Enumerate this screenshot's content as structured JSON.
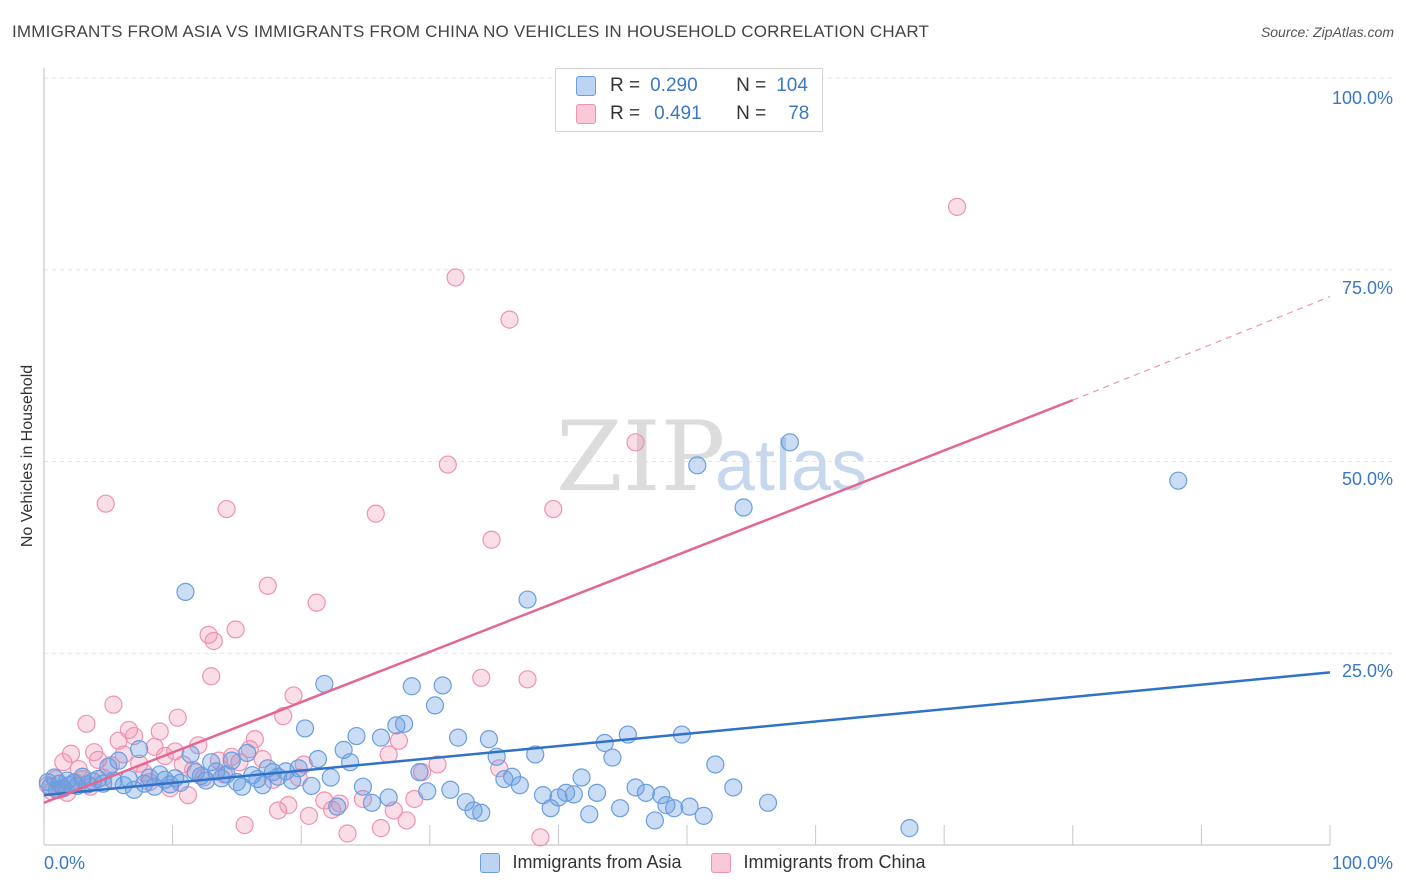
{
  "title": "IMMIGRANTS FROM ASIA VS IMMIGRANTS FROM CHINA NO VEHICLES IN HOUSEHOLD CORRELATION CHART",
  "source": "Source: ZipAtlas.com",
  "watermark": {
    "zip": "ZIP",
    "atlas": "atlas"
  },
  "legend": {
    "rows": [
      {
        "r_label": "R =",
        "r_value": "0.290",
        "n_label": "N =",
        "n_value": "104"
      },
      {
        "r_label": "R =",
        "r_value": "0.491",
        "n_label": "N =",
        "n_value": "78"
      }
    ]
  },
  "chart_data": {
    "type": "scatter",
    "title": "IMMIGRANTS FROM ASIA VS IMMIGRANTS FROM CHINA NO VEHICLES IN HOUSEHOLD CORRELATION CHART",
    "xlabel": "",
    "ylabel": "No Vehicles in Household",
    "xlim": [
      0,
      100
    ],
    "ylim": [
      0,
      100
    ],
    "x_tick_labels": [
      "0.0%",
      "100.0%"
    ],
    "y_tick_labels": [
      "25.0%",
      "50.0%",
      "75.0%",
      "100.0%"
    ],
    "y_ticks": [
      25,
      50,
      75,
      100
    ],
    "grid": true,
    "colors": {
      "asia": "#6a9ee0",
      "china": "#ef93b0",
      "asia_line": "#2f72c8",
      "china_line": "#e26892",
      "tick_label": "#3a78c4"
    },
    "series": [
      {
        "name": "Immigrants from Asia",
        "r": 0.29,
        "n": 104,
        "trend": {
          "x0": 0,
          "y0": 6.5,
          "x1": 100,
          "y1": 22.5
        },
        "points": [
          [
            0.3,
            8.2
          ],
          [
            0.5,
            7.6
          ],
          [
            0.8,
            8.8
          ],
          [
            1.0,
            7.2
          ],
          [
            1.2,
            8.0
          ],
          [
            1.5,
            7.4
          ],
          [
            1.8,
            8.4
          ],
          [
            2.0,
            7.8
          ],
          [
            2.3,
            8.1
          ],
          [
            2.6,
            7.7
          ],
          [
            3.0,
            8.9
          ],
          [
            3.4,
            7.9
          ],
          [
            3.8,
            8.3
          ],
          [
            4.2,
            8.6
          ],
          [
            4.6,
            8.0
          ],
          [
            5.0,
            10.2
          ],
          [
            5.4,
            8.4
          ],
          [
            5.8,
            11.0
          ],
          [
            6.2,
            7.8
          ],
          [
            6.6,
            8.6
          ],
          [
            7.0,
            7.2
          ],
          [
            7.4,
            12.5
          ],
          [
            7.8,
            8.0
          ],
          [
            8.2,
            8.8
          ],
          [
            8.6,
            7.6
          ],
          [
            9.0,
            9.2
          ],
          [
            9.4,
            8.5
          ],
          [
            9.8,
            7.9
          ],
          [
            10.2,
            8.7
          ],
          [
            10.6,
            8.1
          ],
          [
            11.0,
            33.0
          ],
          [
            11.4,
            11.8
          ],
          [
            11.8,
            9.5
          ],
          [
            12.2,
            9.0
          ],
          [
            12.6,
            8.4
          ],
          [
            13.0,
            10.8
          ],
          [
            13.4,
            9.6
          ],
          [
            13.8,
            8.7
          ],
          [
            14.2,
            9.2
          ],
          [
            14.6,
            11.0
          ],
          [
            15.0,
            8.2
          ],
          [
            15.4,
            7.6
          ],
          [
            15.8,
            12.0
          ],
          [
            16.2,
            9.1
          ],
          [
            16.6,
            8.6
          ],
          [
            17.0,
            7.8
          ],
          [
            17.4,
            10.0
          ],
          [
            17.8,
            9.5
          ],
          [
            18.2,
            8.9
          ],
          [
            18.8,
            9.6
          ],
          [
            19.3,
            8.4
          ],
          [
            19.8,
            10.0
          ],
          [
            20.3,
            15.2
          ],
          [
            20.8,
            7.7
          ],
          [
            21.3,
            11.2
          ],
          [
            21.8,
            21.0
          ],
          [
            22.3,
            8.8
          ],
          [
            22.8,
            5.0
          ],
          [
            23.3,
            12.4
          ],
          [
            23.8,
            10.8
          ],
          [
            24.3,
            14.2
          ],
          [
            24.8,
            7.6
          ],
          [
            25.5,
            5.5
          ],
          [
            26.2,
            14.0
          ],
          [
            26.8,
            6.2
          ],
          [
            27.4,
            15.6
          ],
          [
            28.0,
            15.8
          ],
          [
            28.6,
            20.7
          ],
          [
            29.2,
            9.5
          ],
          [
            29.8,
            7.0
          ],
          [
            30.4,
            18.2
          ],
          [
            31.0,
            20.8
          ],
          [
            31.6,
            7.2
          ],
          [
            32.2,
            14.0
          ],
          [
            32.8,
            5.6
          ],
          [
            33.4,
            4.5
          ],
          [
            34.0,
            4.2
          ],
          [
            34.6,
            13.8
          ],
          [
            35.2,
            11.5
          ],
          [
            35.8,
            8.6
          ],
          [
            36.4,
            8.9
          ],
          [
            37.0,
            7.8
          ],
          [
            37.6,
            32.0
          ],
          [
            38.2,
            11.8
          ],
          [
            38.8,
            6.5
          ],
          [
            39.4,
            4.8
          ],
          [
            40.0,
            6.2
          ],
          [
            40.6,
            6.8
          ],
          [
            41.2,
            6.6
          ],
          [
            41.8,
            8.8
          ],
          [
            42.4,
            4.0
          ],
          [
            43.0,
            6.8
          ],
          [
            43.6,
            13.3
          ],
          [
            44.2,
            11.4
          ],
          [
            44.8,
            4.8
          ],
          [
            45.4,
            14.4
          ],
          [
            46.0,
            7.5
          ],
          [
            46.8,
            6.8
          ],
          [
            47.5,
            3.2
          ],
          [
            48.0,
            6.5
          ],
          [
            48.4,
            5.2
          ],
          [
            49.0,
            4.8
          ],
          [
            49.6,
            14.4
          ],
          [
            50.2,
            5.0
          ],
          [
            50.8,
            49.5
          ],
          [
            51.3,
            3.8
          ],
          [
            52.2,
            10.5
          ],
          [
            53.6,
            7.5
          ],
          [
            54.4,
            44.0
          ],
          [
            56.3,
            5.5
          ],
          [
            58.0,
            52.5
          ],
          [
            67.3,
            2.2
          ],
          [
            88.2,
            47.5
          ]
        ]
      },
      {
        "name": "Immigrants from China",
        "r": 0.491,
        "n": 78,
        "trend": {
          "x0": 0,
          "y0": 5.5,
          "x1": 80,
          "y1": 58.0,
          "dash_x1": 100,
          "dash_y1": 71.5
        },
        "points": [
          [
            0.3,
            7.8
          ],
          [
            0.6,
            7.0
          ],
          [
            0.9,
            8.6
          ],
          [
            1.2,
            7.2
          ],
          [
            1.5,
            10.8
          ],
          [
            1.8,
            6.8
          ],
          [
            2.1,
            11.9
          ],
          [
            2.4,
            8.2
          ],
          [
            2.7,
            9.9
          ],
          [
            3.0,
            8.6
          ],
          [
            3.3,
            15.8
          ],
          [
            3.6,
            7.6
          ],
          [
            3.9,
            12.1
          ],
          [
            4.2,
            11.1
          ],
          [
            4.6,
            8.8
          ],
          [
            4.8,
            44.5
          ],
          [
            5.2,
            10.4
          ],
          [
            5.4,
            18.3
          ],
          [
            5.8,
            13.6
          ],
          [
            6.2,
            11.8
          ],
          [
            6.6,
            15.0
          ],
          [
            7.0,
            14.2
          ],
          [
            7.4,
            10.6
          ],
          [
            7.8,
            9.4
          ],
          [
            8.2,
            8.2
          ],
          [
            8.6,
            12.8
          ],
          [
            9.0,
            14.8
          ],
          [
            9.4,
            11.6
          ],
          [
            9.8,
            7.4
          ],
          [
            10.2,
            12.2
          ],
          [
            10.4,
            16.6
          ],
          [
            10.8,
            10.5
          ],
          [
            11.2,
            6.5
          ],
          [
            11.6,
            9.8
          ],
          [
            12.0,
            13.0
          ],
          [
            12.4,
            8.8
          ],
          [
            12.8,
            27.4
          ],
          [
            13.0,
            22.0
          ],
          [
            13.2,
            26.6
          ],
          [
            13.6,
            11.0
          ],
          [
            14.0,
            9.2
          ],
          [
            14.2,
            43.8
          ],
          [
            14.6,
            11.5
          ],
          [
            14.9,
            28.1
          ],
          [
            15.2,
            10.8
          ],
          [
            15.6,
            2.6
          ],
          [
            16.0,
            12.5
          ],
          [
            16.4,
            13.8
          ],
          [
            17.0,
            11.2
          ],
          [
            17.4,
            33.8
          ],
          [
            17.8,
            8.5
          ],
          [
            18.2,
            4.5
          ],
          [
            18.6,
            16.8
          ],
          [
            19.0,
            5.2
          ],
          [
            19.4,
            19.5
          ],
          [
            19.8,
            8.8
          ],
          [
            20.2,
            10.5
          ],
          [
            20.6,
            3.8
          ],
          [
            21.2,
            31.6
          ],
          [
            21.8,
            5.8
          ],
          [
            22.4,
            4.6
          ],
          [
            23.0,
            5.4
          ],
          [
            23.6,
            1.5
          ],
          [
            24.8,
            6.0
          ],
          [
            25.8,
            43.2
          ],
          [
            26.2,
            2.2
          ],
          [
            26.8,
            11.8
          ],
          [
            27.2,
            4.5
          ],
          [
            27.6,
            13.6
          ],
          [
            28.2,
            3.2
          ],
          [
            28.8,
            6.0
          ],
          [
            29.4,
            9.5
          ],
          [
            30.6,
            10.5
          ],
          [
            31.4,
            49.6
          ],
          [
            32.0,
            74.0
          ],
          [
            34.0,
            21.8
          ],
          [
            34.8,
            39.8
          ],
          [
            35.4,
            10.0
          ],
          [
            36.2,
            68.5
          ],
          [
            37.6,
            21.6
          ],
          [
            38.6,
            1.0
          ],
          [
            39.6,
            43.8
          ],
          [
            46.0,
            52.5
          ],
          [
            71.0,
            83.2
          ]
        ]
      }
    ]
  },
  "bottom_legend": [
    {
      "label": "Immigrants from Asia"
    },
    {
      "label": "Immigrants from China"
    }
  ]
}
